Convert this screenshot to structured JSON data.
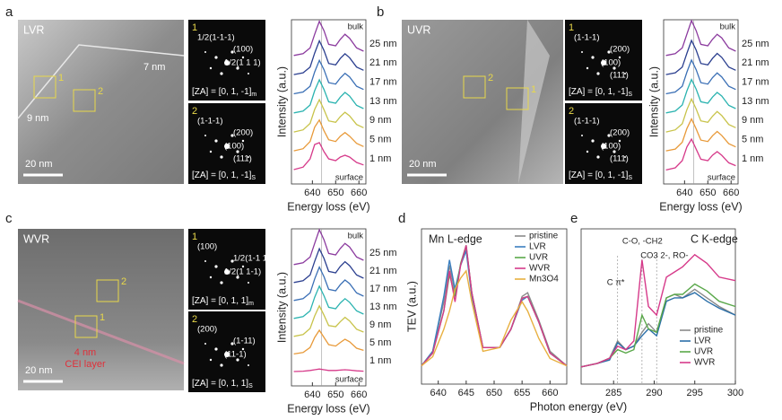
{
  "panel_letters": [
    "a",
    "b",
    "c",
    "d",
    "e"
  ],
  "images": [
    {
      "name": "LVR",
      "scale": "20 nm",
      "boxes": [
        "1",
        "2"
      ],
      "notes": [
        {
          "text": "7 nm",
          "color": "#ffffff"
        },
        {
          "text": "9 nm",
          "color": "#ffffff"
        }
      ],
      "fft": [
        {
          "index": "1",
          "spots": [
            "1/2(1-1-1)",
            "(100)",
            "1/2(1 1 1)"
          ],
          "za": "[ZA] = [0, 1, -1]",
          "za_sub": "m"
        },
        {
          "index": "2",
          "spots": [
            "(1-1-1)",
            "(200)",
            "(100)",
            "(111)"
          ],
          "za": "[ZA] = [0, 1, -1]",
          "za_sub": "S"
        }
      ]
    },
    {
      "name": "UVR",
      "scale": "20 nm",
      "boxes": [
        "2",
        "1"
      ],
      "notes": [],
      "fft": [
        {
          "index": "1",
          "spots": [
            "(1-1-1)",
            "(200)",
            "(100)",
            "(111)"
          ],
          "za": "[ZA] = [0, 1, -1]",
          "za_sub": "S"
        },
        {
          "index": "2",
          "spots": [
            "(1-1-1)",
            "(200)",
            "(100)",
            "(111)"
          ],
          "za": "[ZA] = [0, 1, -1]",
          "za_sub": "S"
        }
      ]
    },
    {
      "name": "WVR",
      "scale": "20 nm",
      "boxes": [
        "2",
        "1"
      ],
      "notes": [
        {
          "text": "4 nm",
          "color": "#e0303a"
        },
        {
          "text": "CEI layer",
          "color": "#e0303a"
        }
      ],
      "fft": [
        {
          "index": "1",
          "spots": [
            "(100)",
            "1/2(1-1 1)",
            "1/2(1 1-1)"
          ],
          "za": "[ZA] = [0, 1, 1]",
          "za_sub": "m"
        },
        {
          "index": "2",
          "spots": [
            "(200)",
            "(1-11)",
            "(11-1)"
          ],
          "za": "[ZA] = [0, 1, 1]",
          "za_sub": "S"
        }
      ]
    }
  ],
  "chart_data": [
    {
      "type": "stacked-line",
      "x_label": "Energy loss (eV)",
      "y_label": "Intensity (a.u.)",
      "top_label": "bulk",
      "bottom_label": "surface",
      "ref_line": 644,
      "xlim": [
        631,
        663
      ],
      "xticks": [
        640,
        650,
        660
      ],
      "x": [
        632,
        636,
        639,
        641,
        643,
        645,
        647,
        650,
        652,
        654,
        656,
        659,
        662
      ],
      "series": [
        {
          "name": "1 nm",
          "color": "#d63a8a",
          "values": [
            0.05,
            0.12,
            0.35,
            0.75,
            0.8,
            0.55,
            0.35,
            0.3,
            0.4,
            0.45,
            0.4,
            0.25,
            0.18
          ]
        },
        {
          "name": "5 nm",
          "color": "#e89a3a",
          "values": [
            0.04,
            0.1,
            0.3,
            0.7,
            0.9,
            0.6,
            0.35,
            0.3,
            0.45,
            0.55,
            0.45,
            0.25,
            0.16
          ]
        },
        {
          "name": "9 nm",
          "color": "#c8c34a",
          "values": [
            0.03,
            0.09,
            0.27,
            0.66,
            0.93,
            0.65,
            0.34,
            0.3,
            0.46,
            0.58,
            0.48,
            0.24,
            0.15
          ]
        },
        {
          "name": "13 nm",
          "color": "#2bb3b0",
          "values": [
            0.03,
            0.08,
            0.25,
            0.65,
            0.95,
            0.68,
            0.34,
            0.3,
            0.47,
            0.6,
            0.5,
            0.24,
            0.15
          ]
        },
        {
          "name": "17 nm",
          "color": "#3a6fb5",
          "values": [
            0.03,
            0.08,
            0.24,
            0.64,
            0.96,
            0.7,
            0.34,
            0.3,
            0.47,
            0.6,
            0.5,
            0.24,
            0.15
          ]
        },
        {
          "name": "21 nm",
          "color": "#2b3f8f",
          "values": [
            0.03,
            0.08,
            0.24,
            0.63,
            0.97,
            0.7,
            0.34,
            0.3,
            0.48,
            0.61,
            0.5,
            0.24,
            0.15
          ]
        },
        {
          "name": "25 nm",
          "color": "#8b3a9e",
          "values": [
            0.03,
            0.08,
            0.24,
            0.62,
            0.98,
            0.72,
            0.34,
            0.3,
            0.48,
            0.62,
            0.51,
            0.24,
            0.15
          ]
        }
      ]
    },
    {
      "type": "stacked-line",
      "x_label": "Energy loss (eV)",
      "y_label": "Intensity (a.u.)",
      "top_label": "bulk",
      "bottom_label": "surface",
      "ref_line": 644,
      "xlim": [
        631,
        663
      ],
      "xticks": [
        640,
        650,
        660
      ],
      "x": [
        632,
        636,
        639,
        641,
        643,
        645,
        647,
        650,
        652,
        654,
        656,
        659,
        662
      ],
      "series": [
        {
          "name": "1 nm",
          "color": "#d63a8a",
          "values": [
            0.04,
            0.1,
            0.3,
            0.68,
            0.9,
            0.62,
            0.34,
            0.3,
            0.45,
            0.55,
            0.45,
            0.24,
            0.16
          ]
        },
        {
          "name": "5 nm",
          "color": "#e89a3a",
          "values": [
            0.04,
            0.09,
            0.28,
            0.66,
            0.93,
            0.65,
            0.34,
            0.3,
            0.46,
            0.58,
            0.47,
            0.24,
            0.15
          ]
        },
        {
          "name": "9 nm",
          "color": "#c8c34a",
          "values": [
            0.03,
            0.09,
            0.26,
            0.65,
            0.95,
            0.67,
            0.34,
            0.3,
            0.47,
            0.6,
            0.49,
            0.24,
            0.15
          ]
        },
        {
          "name": "13 nm",
          "color": "#2bb3b0",
          "values": [
            0.03,
            0.08,
            0.25,
            0.64,
            0.96,
            0.69,
            0.34,
            0.3,
            0.47,
            0.6,
            0.5,
            0.24,
            0.15
          ]
        },
        {
          "name": "17 nm",
          "color": "#3a6fb5",
          "values": [
            0.03,
            0.08,
            0.24,
            0.63,
            0.97,
            0.7,
            0.34,
            0.3,
            0.48,
            0.61,
            0.5,
            0.24,
            0.15
          ]
        },
        {
          "name": "21 nm",
          "color": "#2b3f8f",
          "values": [
            0.03,
            0.08,
            0.24,
            0.62,
            0.98,
            0.71,
            0.34,
            0.3,
            0.48,
            0.62,
            0.51,
            0.24,
            0.15
          ]
        },
        {
          "name": "25 nm",
          "color": "#8b3a9e",
          "values": [
            0.03,
            0.08,
            0.24,
            0.62,
            1.0,
            0.72,
            0.34,
            0.3,
            0.48,
            0.62,
            0.52,
            0.24,
            0.15
          ]
        }
      ]
    },
    {
      "type": "stacked-line",
      "x_label": "Energy loss (eV)",
      "y_label": "Intensity (a.u.)",
      "top_label": "bulk",
      "bottom_label": "surface",
      "ref_line": 644,
      "xlim": [
        631,
        663
      ],
      "xticks": [
        640,
        650,
        660
      ],
      "x": [
        632,
        636,
        639,
        641,
        643,
        645,
        647,
        650,
        652,
        654,
        656,
        659,
        662
      ],
      "series": [
        {
          "name": "1 nm",
          "color": "#d63a8a",
          "values": [
            0.05,
            0.06,
            0.08,
            0.1,
            0.12,
            0.1,
            0.08,
            0.08,
            0.09,
            0.1,
            0.09,
            0.07,
            0.06
          ]
        },
        {
          "name": "5 nm",
          "color": "#e89a3a",
          "values": [
            0.04,
            0.08,
            0.22,
            0.5,
            0.7,
            0.5,
            0.3,
            0.26,
            0.36,
            0.45,
            0.38,
            0.2,
            0.14
          ]
        },
        {
          "name": "9 nm",
          "color": "#c8c34a",
          "values": [
            0.03,
            0.08,
            0.25,
            0.6,
            0.88,
            0.62,
            0.33,
            0.3,
            0.44,
            0.56,
            0.46,
            0.23,
            0.15
          ]
        },
        {
          "name": "13 nm",
          "color": "#2bb3b0",
          "values": [
            0.03,
            0.08,
            0.24,
            0.62,
            0.93,
            0.66,
            0.34,
            0.3,
            0.46,
            0.58,
            0.48,
            0.24,
            0.15
          ]
        },
        {
          "name": "17 nm",
          "color": "#3a6fb5",
          "values": [
            0.03,
            0.08,
            0.24,
            0.63,
            0.96,
            0.69,
            0.34,
            0.3,
            0.47,
            0.6,
            0.5,
            0.24,
            0.15
          ]
        },
        {
          "name": "21 nm",
          "color": "#2b3f8f",
          "values": [
            0.03,
            0.08,
            0.24,
            0.62,
            0.97,
            0.7,
            0.34,
            0.3,
            0.48,
            0.61,
            0.5,
            0.24,
            0.15
          ]
        },
        {
          "name": "25 nm",
          "color": "#8b3a9e",
          "values": [
            0.03,
            0.08,
            0.24,
            0.62,
            1.0,
            0.72,
            0.34,
            0.3,
            0.48,
            0.62,
            0.52,
            0.24,
            0.15
          ]
        }
      ]
    },
    {
      "type": "line",
      "title": "Mn L-edge",
      "y_label": "TEV (a.u.)",
      "x_label": "Photon energy (eV)",
      "xlim": [
        637,
        663
      ],
      "xticks": [
        640,
        645,
        650,
        655,
        660
      ],
      "ylim": [
        0.1,
        0.95
      ],
      "x": [
        637,
        639,
        641,
        642,
        643,
        644,
        645,
        646,
        648,
        651,
        653,
        655,
        656,
        658,
        660,
        663
      ],
      "series": [
        {
          "name": "pristine",
          "color": "#8a8a8a",
          "values": [
            0.2,
            0.28,
            0.55,
            0.75,
            0.6,
            0.75,
            0.85,
            0.6,
            0.3,
            0.3,
            0.4,
            0.58,
            0.6,
            0.45,
            0.28,
            0.2
          ]
        },
        {
          "name": "LVR",
          "color": "#3a7fc0",
          "values": [
            0.2,
            0.28,
            0.58,
            0.78,
            0.62,
            0.75,
            0.83,
            0.58,
            0.3,
            0.3,
            0.4,
            0.56,
            0.58,
            0.44,
            0.27,
            0.2
          ]
        },
        {
          "name": "UVR",
          "color": "#5aa84a",
          "values": [
            0.2,
            0.27,
            0.5,
            0.7,
            0.58,
            0.76,
            0.86,
            0.6,
            0.3,
            0.3,
            0.4,
            0.57,
            0.58,
            0.44,
            0.27,
            0.2
          ]
        },
        {
          "name": "WVR",
          "color": "#d63a8a",
          "values": [
            0.2,
            0.27,
            0.5,
            0.72,
            0.55,
            0.75,
            0.86,
            0.6,
            0.3,
            0.3,
            0.4,
            0.57,
            0.58,
            0.44,
            0.27,
            0.2
          ]
        },
        {
          "name": "Mn3O4",
          "color": "#e8b040",
          "values": [
            0.2,
            0.25,
            0.4,
            0.5,
            0.62,
            0.68,
            0.72,
            0.55,
            0.28,
            0.3,
            0.45,
            0.55,
            0.5,
            0.35,
            0.24,
            0.2
          ]
        }
      ]
    },
    {
      "type": "line",
      "title": "C K-edge",
      "annotations": [
        "C-O, -CH2",
        "CO3 2-, RO-",
        "C  π*"
      ],
      "ref_lines": [
        285.5,
        288.5,
        290.3
      ],
      "xlim": [
        281,
        300
      ],
      "xticks": [
        285,
        290,
        295,
        300
      ],
      "ylim": [
        0.1,
        1.0
      ],
      "x": [
        281,
        283,
        284.5,
        285.5,
        286.5,
        287.5,
        288.5,
        289.3,
        290.3,
        291.5,
        292.5,
        293.5,
        295,
        296.5,
        298,
        300
      ],
      "series": [
        {
          "name": "pristine",
          "color": "#8a8a8a",
          "values": [
            0.2,
            0.22,
            0.25,
            0.35,
            0.3,
            0.32,
            0.4,
            0.45,
            0.4,
            0.6,
            0.62,
            0.6,
            0.65,
            0.6,
            0.55,
            0.5
          ]
        },
        {
          "name": "LVR",
          "color": "#2b6fa8",
          "values": [
            0.2,
            0.22,
            0.24,
            0.34,
            0.3,
            0.32,
            0.38,
            0.42,
            0.38,
            0.58,
            0.6,
            0.6,
            0.63,
            0.58,
            0.54,
            0.5
          ]
        },
        {
          "name": "UVR",
          "color": "#5aa84a",
          "values": [
            0.2,
            0.22,
            0.25,
            0.3,
            0.28,
            0.3,
            0.5,
            0.42,
            0.4,
            0.6,
            0.62,
            0.62,
            0.68,
            0.64,
            0.58,
            0.55
          ]
        },
        {
          "name": "WVR",
          "color": "#d63a8a",
          "values": [
            0.2,
            0.22,
            0.25,
            0.32,
            0.3,
            0.35,
            0.82,
            0.55,
            0.5,
            0.72,
            0.75,
            0.78,
            0.85,
            0.8,
            0.72,
            0.7
          ]
        }
      ]
    }
  ]
}
